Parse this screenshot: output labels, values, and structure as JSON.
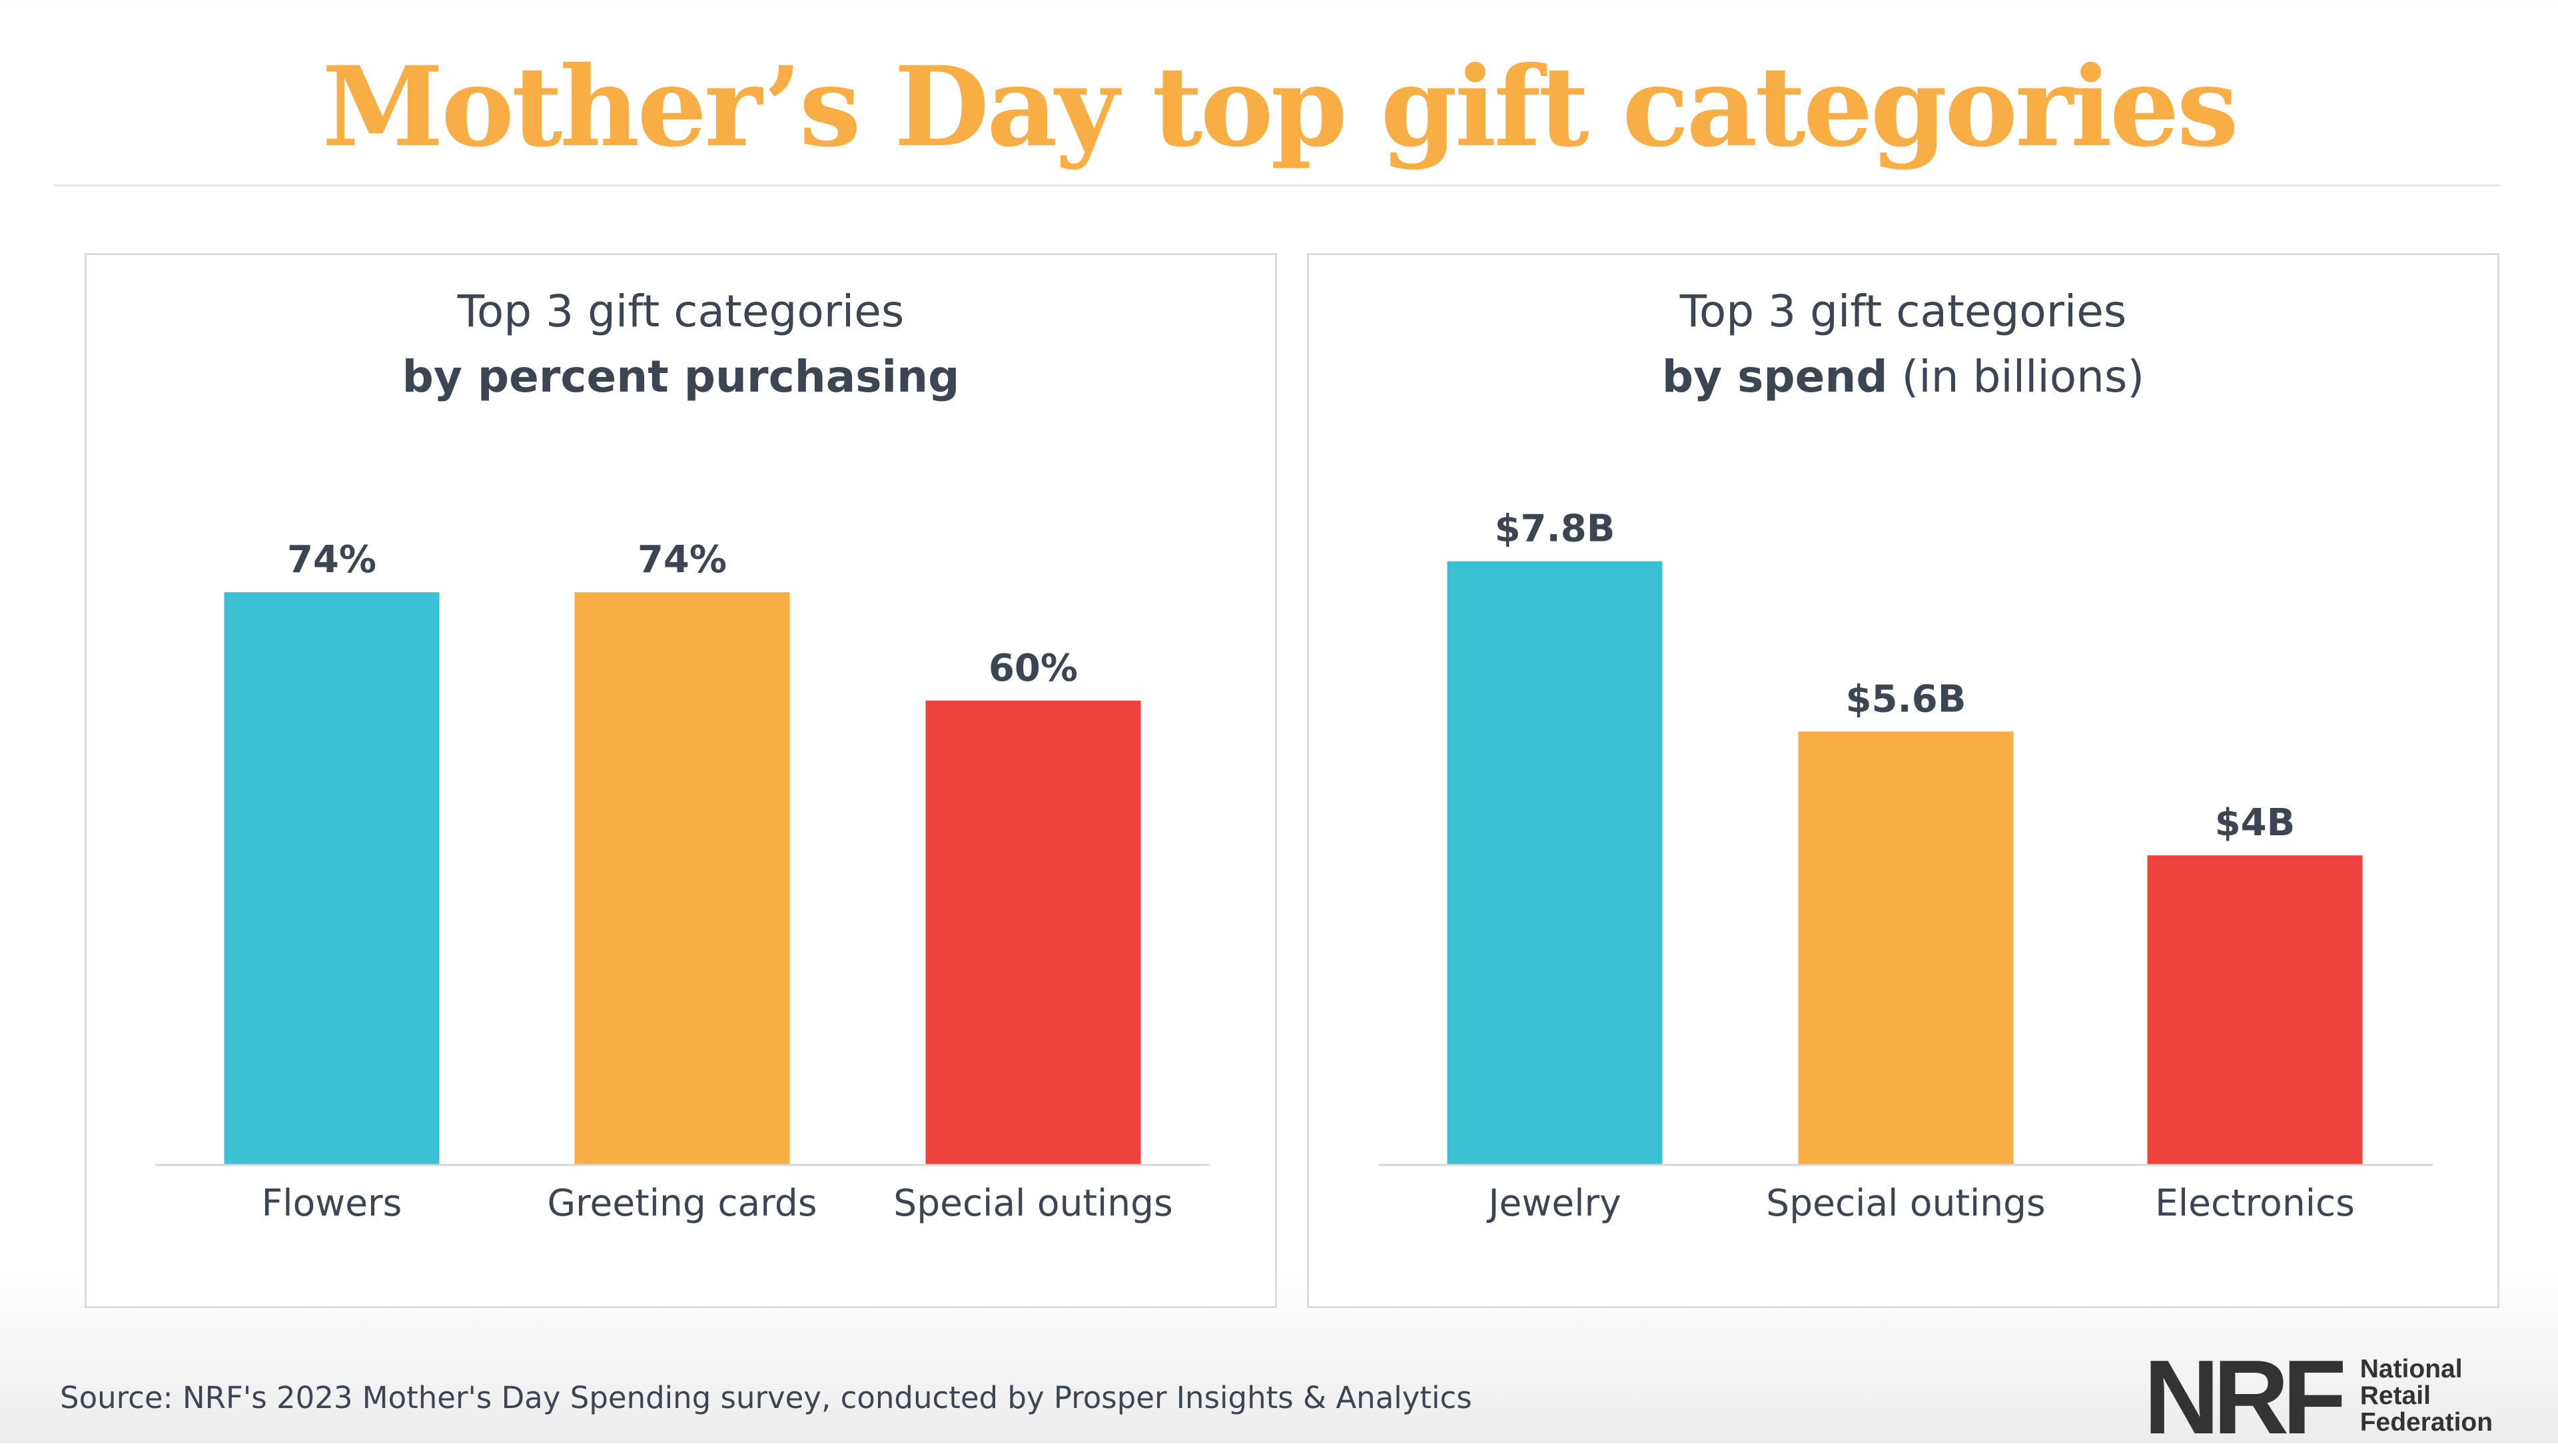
{
  "title": "Mother’s Day top gift categories",
  "colors": {
    "title": "#f9ad45",
    "teal": "#3bc1d3",
    "orange": "#f9ad45",
    "red": "#ee423e",
    "text": "#3d4452"
  },
  "chart_data": [
    {
      "type": "bar",
      "title_line1": "Top 3 gift categories",
      "title_line2_bold": "by percent purchasing",
      "title_line2_rest": "",
      "categories": [
        "Flowers",
        "Greeting cards",
        "Special outings"
      ],
      "values": [
        74,
        74,
        60
      ],
      "data_labels": [
        "74%",
        "74%",
        "60%"
      ],
      "bar_colors": [
        "#3bc1d3",
        "#f9ad45",
        "#ee423e"
      ],
      "unit": "%",
      "grid": false
    },
    {
      "type": "bar",
      "title_line1": "Top 3 gift categories",
      "title_line2_bold": "by spend",
      "title_line2_rest": " (in billions)",
      "categories": [
        "Jewelry",
        "Special outings",
        "Electronics"
      ],
      "values": [
        7.8,
        5.6,
        4
      ],
      "data_labels": [
        "$7.8B",
        "$5.6B",
        "$4B"
      ],
      "bar_colors": [
        "#3bc1d3",
        "#f9ad45",
        "#ee423e"
      ],
      "unit": "billions USD",
      "grid": false
    }
  ],
  "source": "Source: NRF's 2023 Mother's Day Spending survey, conducted by Prosper Insights & Analytics",
  "logo": {
    "mark": "NRF",
    "line1": "National",
    "line2": "Retail",
    "line3": "Federation"
  }
}
